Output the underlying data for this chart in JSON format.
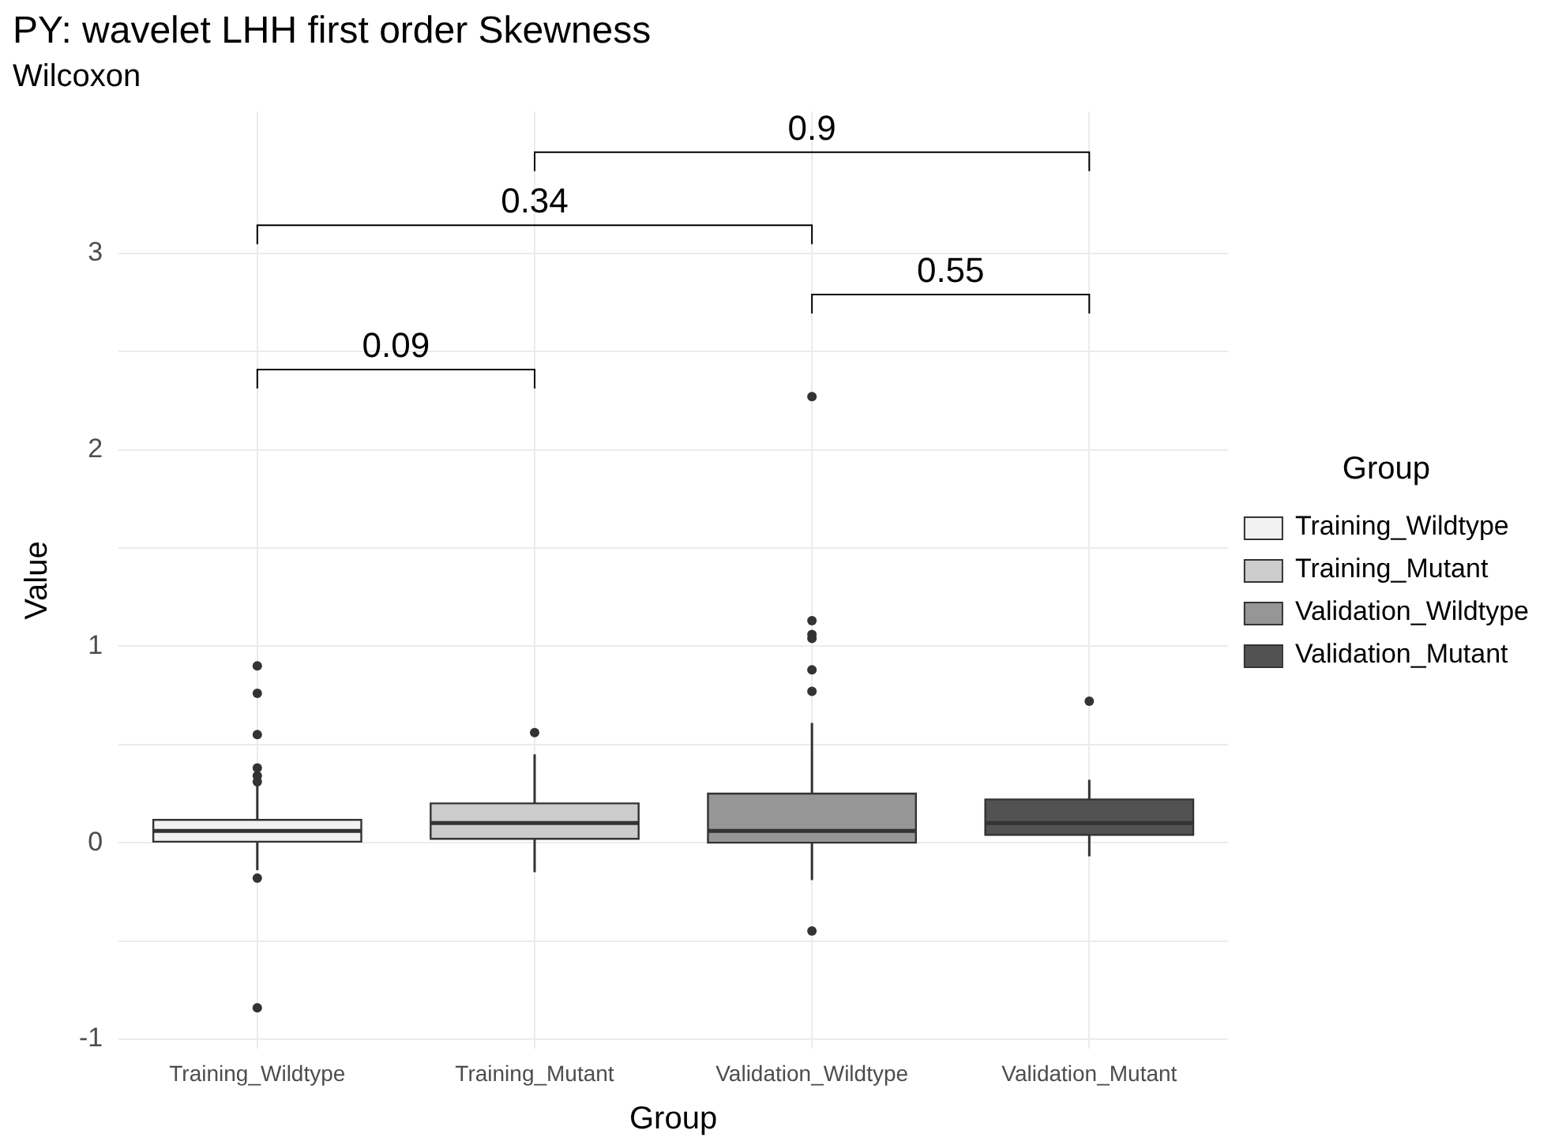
{
  "chart_data": {
    "type": "box",
    "title": "PY: wavelet LHH first order Skewness",
    "subtitle": "Wilcoxon",
    "xlabel": "Group",
    "ylabel": "Value",
    "legend_title": "Group",
    "categories": [
      "Training_Wildtype",
      "Training_Mutant",
      "Validation_Wildtype",
      "Validation_Mutant"
    ],
    "series": [
      {
        "name": "Training_Wildtype",
        "color": "#f2f2f2",
        "boxes": [
          {
            "low": -0.14,
            "q1": 0.005,
            "median": 0.06,
            "q3": 0.116,
            "high": 0.3,
            "outliers": [
              0.9,
              0.76,
              0.55,
              0.38,
              0.34,
              0.31,
              -0.18,
              -0.84
            ]
          },
          null,
          null,
          null
        ]
      },
      {
        "name": "Training_Mutant",
        "color": "#cccccc",
        "boxes": [
          null,
          {
            "low": -0.15,
            "q1": 0.02,
            "median": 0.1,
            "q3": 0.2,
            "high": 0.45,
            "outliers": [
              0.56
            ]
          },
          null,
          null
        ]
      },
      {
        "name": "Validation_Wildtype",
        "color": "#969696",
        "boxes": [
          null,
          null,
          {
            "low": -0.19,
            "q1": 0.0,
            "median": 0.06,
            "q3": 0.25,
            "high": 0.61,
            "outliers": [
              2.27,
              1.13,
              1.06,
              1.04,
              0.88,
              0.77,
              -0.45
            ]
          },
          null
        ]
      },
      {
        "name": "Validation_Mutant",
        "color": "#525252",
        "boxes": [
          null,
          null,
          null,
          {
            "low": -0.07,
            "q1": 0.04,
            "median": 0.1,
            "q3": 0.22,
            "high": 0.32,
            "outliers": [
              0.72
            ]
          }
        ]
      }
    ],
    "ylim": [
      -1.05,
      3.72
    ],
    "yticks": [
      -1,
      0,
      1,
      2,
      3
    ],
    "grid": true,
    "legend": "right",
    "annotations": [
      "0.09",
      "0.55",
      "0.34",
      "0.9"
    ]
  }
}
